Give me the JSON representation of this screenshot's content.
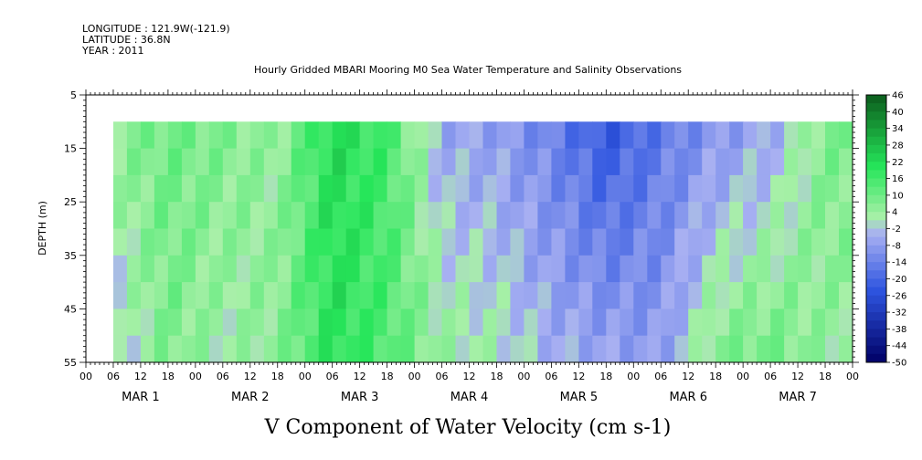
{
  "header": {
    "longitude": "LONGITUDE : 121.9W(-121.9)",
    "latitude": "LATITUDE : 36.8N",
    "year": "YEAR : 2011"
  },
  "chart_data": {
    "type": "heatmap",
    "title": "Hourly Gridded MBARI Mooring M0 Sea Water Temperature and Salinity Observations",
    "xlabel": "",
    "ylabel": "DEPTH (m)",
    "bottom_title": "V Component of Water Velocity (cm s-1)",
    "ylim": [
      55,
      5
    ],
    "yticks": [
      5,
      15,
      25,
      35,
      45,
      55
    ],
    "data_depth_range": [
      10,
      55
    ],
    "x_hour_ticks": [
      "00",
      "06",
      "12",
      "18",
      "00",
      "06",
      "12",
      "18",
      "00",
      "06",
      "12",
      "18",
      "00",
      "06",
      "12",
      "18",
      "00",
      "06",
      "12",
      "18",
      "00",
      "06",
      "12",
      "18",
      "00",
      "06",
      "12",
      "18",
      "00"
    ],
    "x_day_labels": [
      "MAR 1",
      "MAR 2",
      "MAR 3",
      "MAR 4",
      "MAR 5",
      "MAR 6",
      "MAR 7"
    ],
    "data_start_hour": 6,
    "colorbar_labels": [
      "46",
      "40",
      "34",
      "28",
      "22",
      "16",
      "10",
      "4",
      "-2",
      "-8",
      "-14",
      "-20",
      "-26",
      "-32",
      "-38",
      "-44",
      "-50"
    ],
    "colorbar_range": [
      -50,
      46
    ],
    "colorbar_step": 3,
    "palette": {
      "strong_negative": "#000066",
      "negative": "#2e55e0",
      "weak_negative": "#a8b0f2",
      "weak_positive": "#a8f0a8",
      "positive": "#26e65a",
      "strong_positive": "#0b5c1c"
    },
    "velocity_profile_cm_s": [
      {
        "day_hour": "MAR 1 06",
        "surface": 6,
        "bottom": -4
      },
      {
        "day_hour": "MAR 1 18",
        "surface": 10,
        "bottom": 8
      },
      {
        "day_hour": "MAR 2 06",
        "surface": 8,
        "bottom": 2
      },
      {
        "day_hour": "MAR 2 18",
        "surface": 4,
        "bottom": 6
      },
      {
        "day_hour": "MAR 3 06",
        "surface": 22,
        "bottom": 20
      },
      {
        "day_hour": "MAR 3 18",
        "surface": 16,
        "bottom": 14
      },
      {
        "day_hour": "MAR 4 06",
        "surface": -6,
        "bottom": 4
      },
      {
        "day_hour": "MAR 4 18",
        "surface": -8,
        "bottom": 2
      },
      {
        "day_hour": "MAR 5 06",
        "surface": -14,
        "bottom": -4
      },
      {
        "day_hour": "MAR 5 18",
        "surface": -24,
        "bottom": -6
      },
      {
        "day_hour": "MAR 6 06",
        "surface": -16,
        "bottom": -8
      },
      {
        "day_hour": "MAR 6 18",
        "surface": -10,
        "bottom": 8
      },
      {
        "day_hour": "MAR 7 06",
        "surface": -6,
        "bottom": 10
      },
      {
        "day_hour": "MAR 7 18",
        "surface": 8,
        "bottom": 4
      }
    ]
  }
}
